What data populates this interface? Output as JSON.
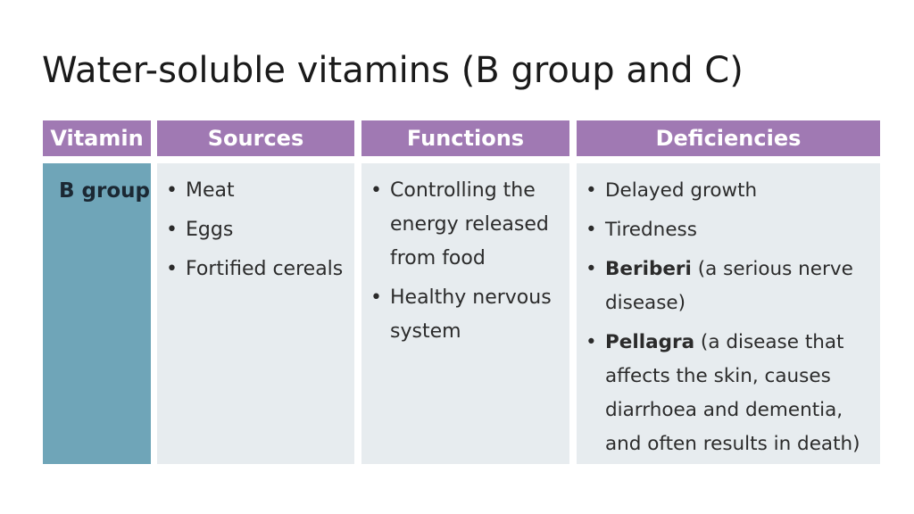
{
  "title": "Water-soluble vitamins (B group and C)",
  "table": {
    "headers": [
      "Vitamin",
      "Sources",
      "Functions",
      "Deficiencies"
    ],
    "row": {
      "vitamin": "B group",
      "sources": [
        "Meat",
        "Eggs",
        "Fortified cereals"
      ],
      "functions": [
        "Controlling the energy released from food",
        "Healthy nervous system"
      ],
      "deficiencies": [
        {
          "bold": "",
          "text": "Delayed growth"
        },
        {
          "bold": "",
          "text": "Tiredness"
        },
        {
          "bold": "Beriberi",
          "text": " (a serious nerve disease)"
        },
        {
          "bold": "Pellagra",
          "text": " (a disease that affects the skin, causes diarrhoea and dementia, and often results in death)"
        }
      ]
    }
  },
  "colors": {
    "header_bg": "#a079b3",
    "vitamin_cell_bg": "#6fa5b8",
    "body_cell_bg": "#e7ecef"
  }
}
